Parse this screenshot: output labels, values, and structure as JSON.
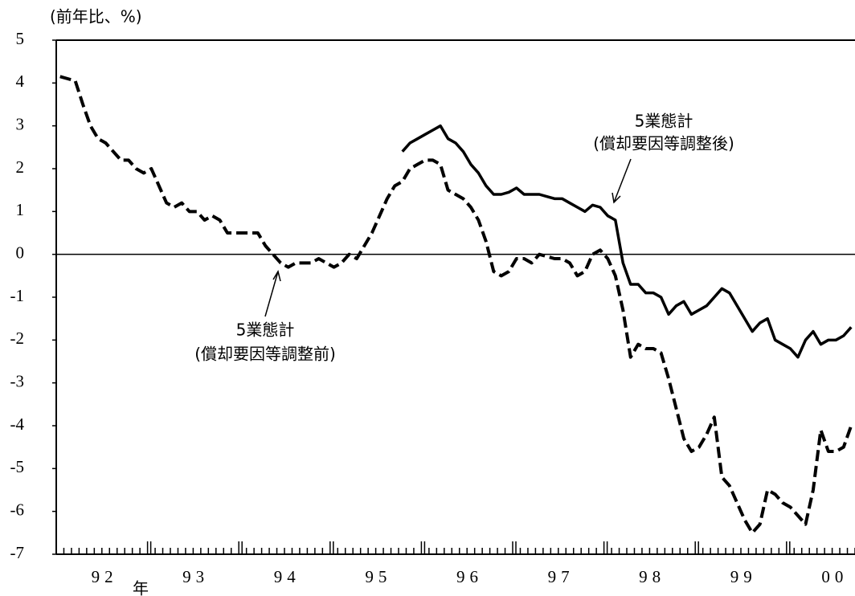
{
  "chart_data": {
    "type": "line",
    "y_label": "(前年比、%)",
    "x_unit": "年",
    "categories": [
      null,
      null,
      null,
      null,
      null,
      "92",
      null,
      null,
      null,
      null,
      null,
      null,
      null,
      null,
      null,
      null,
      null,
      "93",
      null,
      null,
      null,
      null,
      null,
      null,
      null,
      null,
      null,
      null,
      null,
      "94",
      null,
      null,
      null,
      null,
      null,
      null,
      null,
      null,
      null,
      null,
      null,
      "95",
      null,
      null,
      null,
      null,
      null,
      null,
      null,
      null,
      null,
      null,
      null,
      "96",
      null,
      null,
      null,
      null,
      null,
      null,
      null,
      null,
      null,
      null,
      null,
      "97",
      null,
      null,
      null,
      null,
      null,
      null,
      null,
      null,
      null,
      null,
      null,
      "98",
      null,
      null,
      null,
      null,
      null,
      null,
      null,
      null,
      null,
      null,
      null,
      "99",
      null,
      null,
      null,
      null,
      null,
      null,
      null,
      null,
      null,
      null,
      null,
      "00",
      null,
      null,
      null
    ],
    "series": [
      {
        "style": "dashed",
        "color": "#000000",
        "values": [
          4.15,
          4.1,
          4.05,
          3.5,
          3.0,
          2.7,
          2.6,
          2.4,
          2.2,
          2.2,
          2.0,
          1.9,
          2.0,
          1.6,
          1.2,
          1.1,
          1.2,
          1.0,
          1.0,
          0.8,
          0.9,
          0.8,
          0.5,
          0.5,
          0.5,
          0.5,
          0.5,
          0.2,
          0.0,
          -0.2,
          -0.3,
          -0.2,
          -0.2,
          -0.2,
          -0.1,
          -0.2,
          -0.3,
          -0.2,
          0.0,
          -0.1,
          0.2,
          0.5,
          0.9,
          1.3,
          1.6,
          1.7,
          2.0,
          2.1,
          2.2,
          2.2,
          2.1,
          1.5,
          1.4,
          1.3,
          1.1,
          0.8,
          0.3,
          -0.4,
          -0.5,
          -0.4,
          -0.1,
          -0.1,
          -0.2,
          0.0,
          -0.05,
          -0.1,
          -0.1,
          -0.2,
          -0.5,
          -0.4,
          0.0,
          0.1,
          -0.1,
          -0.5,
          -1.3,
          -2.4,
          -2.1,
          -2.2,
          -2.2,
          -2.3,
          -2.9,
          -3.6,
          -4.3,
          -4.6,
          -4.5,
          -4.2,
          -3.8,
          -5.2,
          -5.4,
          -5.8,
          -6.2,
          -6.5,
          -6.3,
          -5.5,
          -5.6,
          -5.8,
          -5.9,
          -6.1,
          -6.3,
          -5.5,
          -4.1,
          -4.6,
          -4.6,
          -4.5,
          -4.0
        ]
      },
      {
        "style": "solid",
        "color": "#000000",
        "values": [
          null,
          null,
          null,
          null,
          null,
          null,
          null,
          null,
          null,
          null,
          null,
          null,
          null,
          null,
          null,
          null,
          null,
          null,
          null,
          null,
          null,
          null,
          null,
          null,
          null,
          null,
          null,
          null,
          null,
          null,
          null,
          null,
          null,
          null,
          null,
          null,
          null,
          null,
          null,
          null,
          null,
          null,
          null,
          null,
          null,
          2.4,
          2.6,
          2.7,
          2.8,
          2.9,
          3.0,
          2.7,
          2.6,
          2.4,
          2.1,
          1.9,
          1.6,
          1.4,
          1.4,
          1.45,
          1.55,
          1.4,
          1.4,
          1.4,
          1.35,
          1.3,
          1.3,
          1.2,
          1.1,
          1.0,
          1.15,
          1.1,
          0.9,
          0.8,
          -0.2,
          -0.7,
          -0.7,
          -0.9,
          -0.9,
          -1.0,
          -1.4,
          -1.2,
          -1.1,
          -1.4,
          -1.3,
          -1.2,
          -1.0,
          -0.8,
          -0.9,
          -1.2,
          -1.5,
          -1.8,
          -1.6,
          -1.5,
          -2.0,
          -2.1,
          -2.2,
          -2.4,
          -2.0,
          -1.8,
          -2.1,
          -2.0,
          -2.0,
          -1.9,
          -1.7
        ]
      }
    ],
    "annotations": [
      {
        "lines": [
          "5業態計",
          "(償却要因等調整後)"
        ]
      },
      {
        "lines": [
          "5業態計",
          "(償却要因等調整前)"
        ]
      }
    ],
    "ylim": [
      -7,
      5
    ],
    "yticks": [
      -7,
      -6,
      -5,
      -4,
      -3,
      -2,
      -1,
      0,
      1,
      2,
      3,
      4,
      5
    ]
  }
}
